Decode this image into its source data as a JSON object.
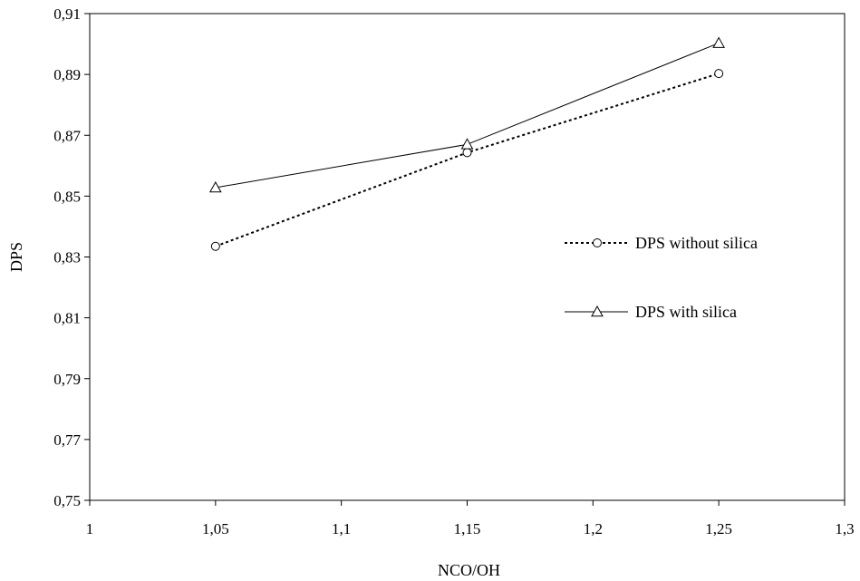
{
  "chart_data": {
    "type": "line",
    "title": "",
    "xlabel": "NCO/OH",
    "ylabel": "DPS",
    "xlim": [
      1,
      1.3
    ],
    "ylim": [
      0.75,
      0.91
    ],
    "x_ticks": [
      1,
      1.05,
      1.1,
      1.15,
      1.2,
      1.25,
      1.3
    ],
    "x_tick_labels": [
      "1",
      "1,05",
      "1,1",
      "1,15",
      "1,2",
      "1,25",
      "1,3"
    ],
    "y_ticks": [
      0.75,
      0.77,
      0.79,
      0.81,
      0.83,
      0.85,
      0.87,
      0.89,
      0.91
    ],
    "y_tick_labels": [
      "0,75",
      "0,77",
      "0,79",
      "0,81",
      "0,83",
      "0,85",
      "0,87",
      "0,89",
      "0,91"
    ],
    "grid": false,
    "legend_position": "right",
    "series": [
      {
        "name": "DPS without silica",
        "marker": "circle",
        "line_style": "dotted",
        "color": "#000000",
        "x": [
          1.05,
          1.15,
          1.25
        ],
        "y": [
          0.8335,
          0.8643,
          0.8903
        ]
      },
      {
        "name": "DPS with silica",
        "marker": "triangle",
        "line_style": "solid",
        "color": "#000000",
        "x": [
          1.05,
          1.15,
          1.25
        ],
        "y": [
          0.8528,
          0.867,
          0.9003
        ]
      }
    ]
  }
}
